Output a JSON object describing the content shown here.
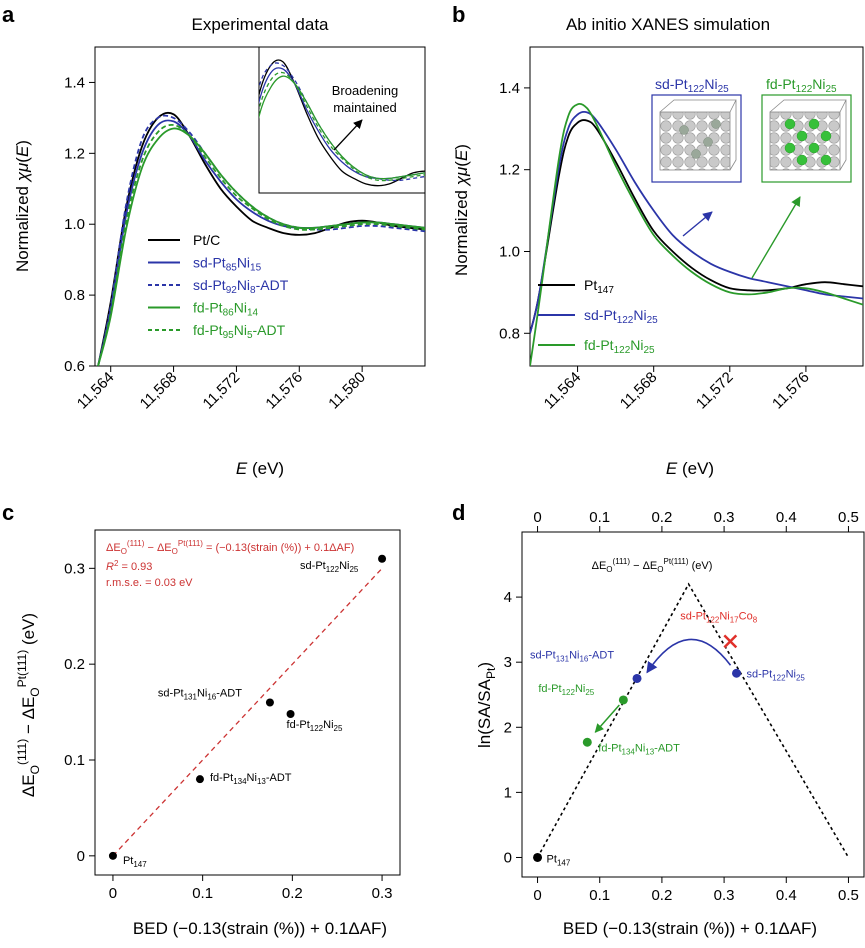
{
  "panels": {
    "a": {
      "letter": "a",
      "title": "Experimental data",
      "ylabel": "Normalized χμ(E)",
      "xlabel": "E (eV)",
      "inset_label": [
        "Broadening",
        "maintained"
      ]
    },
    "b": {
      "letter": "b",
      "title": "Ab initio XANES simulation",
      "ylabel": "Normalized χμ(E)",
      "xlabel": "E (eV)",
      "cluster_labels": [
        "sd-Pt122Ni25",
        "fd-Pt122Ni25"
      ]
    },
    "c": {
      "letter": "c",
      "ylabel": "ΔE_O(111) − ΔE_O^Pt(111) (eV)",
      "xlabel": "BED (−0.13(strain (%)) + 0.1ΔAF)",
      "fit_equation": "ΔE_O(111) − ΔE_O^Pt(111) = (−0.13(strain (%)) + 0.1ΔAF)",
      "r2": "R² = 0.93",
      "rmse": "r.m.s.e. = 0.03 eV"
    },
    "d": {
      "letter": "d",
      "ylabel": "ln(SA/SA_Pt)",
      "xlabel": "BED (−0.13(strain (%)) + 0.1ΔAF)",
      "top_axis_label": "ΔE_O(111) − ΔE_O^Pt(111) (eV)"
    }
  },
  "colors": {
    "black": "#000000",
    "blue": "#2b35a8",
    "green": "#2a9a2a",
    "red": "#e0302a",
    "fit": "#cc3333"
  },
  "chart_data": [
    {
      "panel": "a",
      "type": "line",
      "title": "Experimental data",
      "xlabel": "E (eV)",
      "ylabel": "Normalized χμ(E)",
      "xlim": [
        11563,
        11584
      ],
      "ylim": [
        0.6,
        1.5
      ],
      "xticks": [
        11564,
        11568,
        11572,
        11576,
        11580
      ],
      "xtick_labels": [
        "11,564",
        "11,568",
        "11,572",
        "11,576",
        "11,580"
      ],
      "yticks": [
        0.6,
        0.8,
        1.0,
        1.2,
        1.4
      ],
      "ytick_labels": [
        "0.6",
        "0.8",
        "1.0",
        "1.2",
        "1.4"
      ],
      "series": [
        {
          "name": "Pt/C",
          "legend": [
            "Pt/C"
          ],
          "color": "#000000",
          "dash": false,
          "x": [
            11563.2,
            11564,
            11565,
            11566,
            11567,
            11568,
            11569,
            11570,
            11571,
            11572,
            11573,
            11574,
            11575,
            11576,
            11577,
            11578,
            11579,
            11580,
            11581,
            11582,
            11583,
            11584
          ],
          "y": [
            0.6,
            0.78,
            1.05,
            1.22,
            1.3,
            1.31,
            1.25,
            1.17,
            1.1,
            1.05,
            1.01,
            0.99,
            0.975,
            0.97,
            0.975,
            0.99,
            1.005,
            1.01,
            1.005,
            0.995,
            0.99,
            0.985
          ]
        },
        {
          "name": "sd-Pt85Ni15",
          "legend": [
            "sd-Pt",
            "85",
            "Ni",
            "15"
          ],
          "color": "#2b35a8",
          "dash": false,
          "x": [
            11563.2,
            11564,
            11565,
            11566,
            11567,
            11568,
            11569,
            11570,
            11571,
            11572,
            11573,
            11574,
            11575,
            11576,
            11577,
            11578,
            11579,
            11580,
            11581,
            11582,
            11583,
            11584
          ],
          "y": [
            0.6,
            0.76,
            1.03,
            1.2,
            1.28,
            1.29,
            1.25,
            1.18,
            1.12,
            1.07,
            1.035,
            1.01,
            0.995,
            0.99,
            0.99,
            0.995,
            1.0,
            1.005,
            1.005,
            1.0,
            0.995,
            0.99
          ]
        },
        {
          "name": "sd-Pt92Ni8-ADT",
          "legend": [
            "sd-Pt",
            "92",
            "Ni",
            "8",
            "-ADT"
          ],
          "color": "#2b35a8",
          "dash": true,
          "x": [
            11563.2,
            11564,
            11565,
            11566,
            11567,
            11568,
            11569,
            11570,
            11571,
            11572,
            11573,
            11574,
            11575,
            11576,
            11577,
            11578,
            11579,
            11580,
            11581,
            11582,
            11583,
            11584
          ],
          "y": [
            0.6,
            0.77,
            1.06,
            1.24,
            1.3,
            1.3,
            1.26,
            1.2,
            1.14,
            1.09,
            1.05,
            1.02,
            1.0,
            0.99,
            0.985,
            0.985,
            0.99,
            0.995,
            0.995,
            0.99,
            0.985,
            0.98
          ]
        },
        {
          "name": "fd-Pt86Ni14",
          "legend": [
            "fd-Pt",
            "86",
            "Ni",
            "14"
          ],
          "color": "#2a9a2a",
          "dash": false,
          "x": [
            11563.2,
            11564,
            11565,
            11566,
            11567,
            11568,
            11569,
            11570,
            11571,
            11572,
            11573,
            11574,
            11575,
            11576,
            11577,
            11578,
            11579,
            11580,
            11581,
            11582,
            11583,
            11584
          ],
          "y": [
            0.6,
            0.74,
            0.99,
            1.16,
            1.24,
            1.27,
            1.25,
            1.2,
            1.14,
            1.09,
            1.05,
            1.02,
            1.0,
            0.99,
            0.99,
            0.995,
            1.0,
            1.005,
            1.005,
            1.0,
            0.995,
            0.99
          ]
        },
        {
          "name": "fd-Pt95Ni5-ADT",
          "legend": [
            "fd-Pt",
            "95",
            "Ni",
            "5",
            "-ADT"
          ],
          "color": "#2a9a2a",
          "dash": true,
          "x": [
            11563.2,
            11564,
            11565,
            11566,
            11567,
            11568,
            11569,
            11570,
            11571,
            11572,
            11573,
            11574,
            11575,
            11576,
            11577,
            11578,
            11579,
            11580,
            11581,
            11582,
            11583,
            11584
          ],
          "y": [
            0.6,
            0.75,
            1.01,
            1.18,
            1.26,
            1.28,
            1.25,
            1.19,
            1.13,
            1.08,
            1.045,
            1.015,
            0.995,
            0.985,
            0.985,
            0.99,
            0.995,
            1.0,
            1.0,
            0.995,
            0.99,
            0.985
          ]
        }
      ],
      "inset": {
        "xlim": [
          11566,
          11580
        ],
        "ylim": [
          0.95,
          1.35
        ],
        "note": "zoom of the white-line region"
      }
    },
    {
      "panel": "b",
      "type": "line",
      "title": "Ab initio XANES simulation",
      "xlabel": "E (eV)",
      "ylabel": "Normalized χμ(E)",
      "xlim": [
        11561.5,
        11579
      ],
      "ylim": [
        0.72,
        1.5
      ],
      "xticks": [
        11564,
        11568,
        11572,
        11576
      ],
      "xtick_labels": [
        "11,564",
        "11,568",
        "11,572",
        "11,576"
      ],
      "yticks": [
        0.8,
        1.0,
        1.2,
        1.4
      ],
      "ytick_labels": [
        "0.8",
        "1.0",
        "1.2",
        "1.4"
      ],
      "series": [
        {
          "name": "Pt147",
          "legend": [
            "Pt",
            "147"
          ],
          "color": "#000000",
          "x": [
            11561.5,
            11562,
            11563,
            11563.5,
            11564,
            11564.5,
            11565,
            11566,
            11567,
            11568,
            11569,
            11570,
            11571,
            11572,
            11573,
            11574,
            11575,
            11576,
            11577,
            11578,
            11579
          ],
          "y": [
            0.8,
            0.9,
            1.18,
            1.28,
            1.315,
            1.32,
            1.3,
            1.22,
            1.13,
            1.05,
            1.0,
            0.96,
            0.93,
            0.91,
            0.905,
            0.905,
            0.91,
            0.92,
            0.925,
            0.92,
            0.915
          ]
        },
        {
          "name": "sd-Pt122Ni25",
          "legend": [
            "sd-Pt",
            "122",
            "Ni",
            "25"
          ],
          "color": "#2b35a8",
          "x": [
            11561.5,
            11562,
            11563,
            11563.5,
            11564,
            11564.5,
            11565,
            11566,
            11567,
            11568,
            11569,
            11570,
            11571,
            11572,
            11573,
            11574,
            11575,
            11576,
            11577,
            11578,
            11579
          ],
          "y": [
            0.8,
            0.9,
            1.2,
            1.3,
            1.335,
            1.34,
            1.32,
            1.25,
            1.17,
            1.1,
            1.04,
            1.0,
            0.97,
            0.95,
            0.935,
            0.925,
            0.915,
            0.905,
            0.895,
            0.89,
            0.885
          ]
        },
        {
          "name": "fd-Pt122Ni25",
          "legend": [
            "fd-Pt",
            "122",
            "Ni",
            "25"
          ],
          "color": "#2a9a2a",
          "x": [
            11561.5,
            11562,
            11563,
            11563.5,
            11564,
            11564.5,
            11565,
            11566,
            11567,
            11568,
            11569,
            11570,
            11571,
            11572,
            11573,
            11574,
            11575,
            11576,
            11577,
            11578,
            11579
          ],
          "y": [
            0.72,
            0.88,
            1.22,
            1.33,
            1.36,
            1.35,
            1.31,
            1.21,
            1.12,
            1.04,
            0.99,
            0.95,
            0.92,
            0.9,
            0.895,
            0.9,
            0.91,
            0.91,
            0.9,
            0.885,
            0.87
          ]
        }
      ]
    },
    {
      "panel": "c",
      "type": "scatter",
      "xlabel": "BED (−0.13(strain (%)) + 0.1ΔAF)",
      "ylabel": "ΔE_O(111) − ΔE_O^Pt(111) (eV)",
      "xlim": [
        -0.02,
        0.32
      ],
      "ylim": [
        -0.02,
        0.34
      ],
      "xticks": [
        0,
        0.1,
        0.2,
        0.3
      ],
      "xtick_labels": [
        "0",
        "0.1",
        "0.2",
        "0.3"
      ],
      "yticks": [
        0,
        0.1,
        0.2,
        0.3
      ],
      "ytick_labels": [
        "0",
        "0.1",
        "0.2",
        "0.3"
      ],
      "points": [
        {
          "x": 0.0,
          "y": 0.0,
          "label": [
            "Pt",
            "147"
          ]
        },
        {
          "x": 0.097,
          "y": 0.08,
          "label": [
            "fd-Pt",
            "134",
            "Ni",
            "13",
            "-ADT"
          ]
        },
        {
          "x": 0.175,
          "y": 0.16,
          "label": [
            "sd-Pt",
            "131",
            "Ni",
            "16",
            "-ADT"
          ]
        },
        {
          "x": 0.198,
          "y": 0.148,
          "label": [
            "fd-Pt",
            "122",
            "Ni",
            "25"
          ]
        },
        {
          "x": 0.3,
          "y": 0.31,
          "label": [
            "sd-Pt",
            "122",
            "Ni",
            "25"
          ]
        }
      ],
      "fit_line": {
        "x": [
          0,
          0.3
        ],
        "y": [
          0,
          0.3
        ]
      }
    },
    {
      "panel": "d",
      "type": "scatter",
      "xlabel": "BED (−0.13(strain (%)) + 0.1ΔAF)",
      "ylabel": "ln(SA/SA_Pt)",
      "xlim": [
        -0.025,
        0.525
      ],
      "ylim": [
        -0.3,
        5.0
      ],
      "xticks": [
        0,
        0.1,
        0.2,
        0.3,
        0.4,
        0.5
      ],
      "xtick_labels": [
        "0",
        "0.1",
        "0.2",
        "0.3",
        "0.4",
        "0.5"
      ],
      "yticks": [
        0,
        1,
        2,
        3,
        4
      ],
      "ytick_labels": [
        "0",
        "1",
        "2",
        "3",
        "4"
      ],
      "volcano": {
        "x": [
          0,
          0.243,
          0.5
        ],
        "y": [
          0,
          4.2,
          0
        ]
      },
      "points": [
        {
          "x": 0.0,
          "y": 0.0,
          "color": "#000000",
          "marker": "dot",
          "label": [
            "Pt",
            "147"
          ]
        },
        {
          "x": 0.16,
          "y": 2.75,
          "color": "#2b35a8",
          "marker": "dot",
          "label": [
            "sd-Pt",
            "131",
            "Ni",
            "16",
            "-ADT"
          ]
        },
        {
          "x": 0.32,
          "y": 2.83,
          "color": "#2b35a8",
          "marker": "dot",
          "label": [
            "sd-Pt",
            "122",
            "Ni",
            "25"
          ]
        },
        {
          "x": 0.138,
          "y": 2.42,
          "color": "#2a9a2a",
          "marker": "dot",
          "label": [
            "fd-Pt",
            "122",
            "Ni",
            "25"
          ]
        },
        {
          "x": 0.08,
          "y": 1.77,
          "color": "#2a9a2a",
          "marker": "dot",
          "label": [
            "fd-Pt",
            "134",
            "Ni",
            "13",
            "-ADT"
          ]
        },
        {
          "x": 0.31,
          "y": 3.32,
          "color": "#e0302a",
          "marker": "x",
          "label": [
            "sd-Pt",
            "122",
            "Ni",
            "17",
            "Co",
            "8"
          ]
        }
      ]
    }
  ]
}
